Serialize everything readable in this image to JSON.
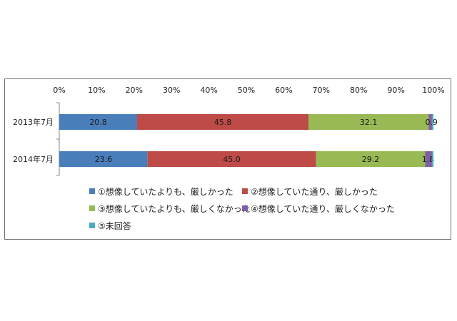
{
  "chart_data": {
    "type": "bar",
    "orientation": "horizontal",
    "stacked": true,
    "categories": [
      "2013年7月",
      "2014年7月"
    ],
    "series": [
      {
        "name": "①想像していたよりも、厳しかった",
        "values": [
          20.8,
          23.6
        ],
        "color": "#4a7ebb"
      },
      {
        "name": "②想像していた通り、厳しかった",
        "values": [
          45.8,
          45.0
        ],
        "color": "#be4b48"
      },
      {
        "name": "③想像していたよりも、厳しくなかった",
        "values": [
          32.1,
          29.2
        ],
        "color": "#98b954"
      },
      {
        "name": "④想像していた通り、厳しくなかった",
        "values": [
          0.9,
          1.8
        ],
        "color": "#7d60a0"
      },
      {
        "name": "⑤未回答",
        "values": [
          0.4,
          0.4
        ],
        "color": "#46aac5"
      }
    ],
    "data_labels": [
      [
        "20.8",
        "45.8",
        "32.1",
        "0.9",
        ""
      ],
      [
        "23.6",
        "45.0",
        "29.2",
        "1.8",
        ""
      ]
    ],
    "xlim": [
      0,
      100
    ],
    "x_ticks": [
      "0%",
      "10%",
      "20%",
      "30%",
      "40%",
      "50%",
      "60%",
      "70%",
      "80%",
      "90%",
      "100%"
    ],
    "x_axis_position": "top",
    "legend_position": "bottom",
    "grid": false,
    "title": "",
    "xlabel": "",
    "ylabel": ""
  }
}
